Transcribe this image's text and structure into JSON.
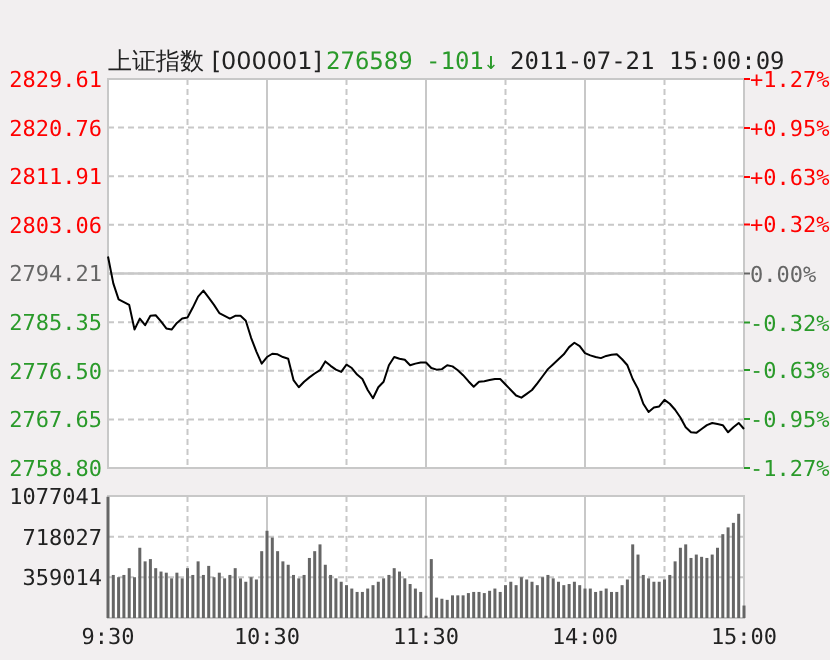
{
  "chart_data": [
    {
      "type": "line",
      "title": "上证指数 [000001]",
      "annotations": [
        "276589",
        "-101↓",
        "2011-07-21 15:00:09"
      ],
      "categories": [
        null,
        null,
        null,
        null,
        null,
        null,
        null,
        null,
        null,
        null,
        null,
        null,
        null,
        null,
        null,
        null,
        null,
        null,
        null,
        null,
        null,
        null,
        null,
        null,
        null,
        null,
        null,
        null,
        null,
        null,
        null,
        null,
        null,
        null,
        null,
        null,
        null,
        null,
        null,
        null,
        null,
        null,
        null,
        null,
        null,
        null,
        null,
        null,
        null,
        null,
        null,
        null,
        null,
        null,
        null,
        null,
        null,
        null,
        null,
        null,
        null,
        null,
        null,
        null,
        null,
        null,
        null,
        null,
        null,
        null,
        null,
        null,
        null,
        null,
        null,
        null,
        null,
        null,
        null,
        null,
        null,
        null,
        null,
        null,
        null,
        null,
        null,
        null,
        null,
        null,
        null,
        null,
        null,
        null,
        null,
        null,
        null,
        null,
        null,
        null,
        null,
        null,
        null,
        null,
        null,
        null,
        null,
        null,
        null,
        null,
        null,
        null,
        null,
        null,
        null,
        null,
        null,
        null,
        null,
        null,
        null
      ],
      "ylim": [
        2758.8,
        2829.61
      ],
      "yticks": [
        {
          "value": 2829.61,
          "label": "2829.61"
        },
        {
          "value": 2820.76,
          "label": "2820.76"
        },
        {
          "value": 2811.91,
          "label": "2811.91"
        },
        {
          "value": 2803.06,
          "label": "2803.06"
        },
        {
          "value": 2794.21,
          "label": "2794.21"
        },
        {
          "value": 2785.35,
          "label": "2785.35"
        },
        {
          "value": 2776.5,
          "label": "2776.50"
        },
        {
          "value": 2767.65,
          "label": "2767.65"
        },
        {
          "value": 2758.8,
          "label": "2758.80"
        }
      ],
      "y2lim": [
        -1.27,
        1.27
      ],
      "y2ticks": [
        {
          "value": 1.27,
          "label": "+1.27%"
        },
        {
          "value": 0.95,
          "label": "+0.95%"
        },
        {
          "value": 0.63,
          "label": "+0.63%"
        },
        {
          "value": 0.32,
          "label": "+0.32%"
        },
        {
          "value": 0,
          "label": "0.00%"
        },
        {
          "value": -0.32,
          "label": "-0.32%"
        },
        {
          "value": -0.63,
          "label": "-0.63%"
        },
        {
          "value": -0.95,
          "label": "-0.95%"
        },
        {
          "value": -1.27,
          "label": "-1.27%"
        }
      ],
      "ref_lines": [
        {
          "axis": "y",
          "value": 2794.21
        }
      ],
      "grid": true,
      "tick_labels": "y",
      "series": [
        {
          "color": "#000000",
          "values": [
            2797.3,
            2792.4,
            2789.5,
            2789.0,
            2788.5,
            2784.0,
            2786.0,
            2784.8,
            2786.5,
            2786.6,
            2785.5,
            2784.2,
            2784.0,
            2785.2,
            2786.0,
            2786.2,
            2788.0,
            2790.0,
            2791.1,
            2789.8,
            2788.5,
            2787.0,
            2786.5,
            2786.0,
            2786.5,
            2786.5,
            2785.6,
            2782.5,
            2780.0,
            2777.8,
            2779.0,
            2779.6,
            2779.5,
            2779.0,
            2778.7,
            2774.8,
            2773.5,
            2774.5,
            2775.3,
            2776.0,
            2776.6,
            2778.2,
            2777.4,
            2776.7,
            2776.3,
            2777.6,
            2777.0,
            2775.8,
            2775.0,
            2773.0,
            2771.5,
            2773.5,
            2774.5,
            2777.5,
            2779.0,
            2778.7,
            2778.5,
            2777.5,
            2777.8,
            2778.0,
            2778.0,
            2777.0,
            2776.7,
            2776.8,
            2777.5,
            2777.3,
            2776.6,
            2775.7,
            2774.6,
            2773.6,
            2774.5,
            2774.6,
            2774.8,
            2775.0,
            2775.0,
            2774.0,
            2773.0,
            2772.0,
            2771.6,
            2772.3,
            2773.0,
            2774.2,
            2775.5,
            2776.8,
            2777.7,
            2778.6,
            2779.5,
            2780.8,
            2781.6,
            2781.0,
            2779.7,
            2779.3,
            2779.0,
            2778.8,
            2779.2,
            2779.4,
            2779.5,
            2778.6,
            2777.5,
            2775.0,
            2773.2,
            2770.5,
            2769.0,
            2769.8,
            2770.0,
            2771.2,
            2770.5,
            2769.4,
            2768.0,
            2766.2,
            2765.3,
            2765.2,
            2765.9,
            2766.6,
            2767.0,
            2766.8,
            2766.6,
            2765.3,
            2766.2,
            2767.0,
            2765.9
          ]
        }
      ]
    },
    {
      "type": "bar",
      "color": "#666666",
      "categories": [
        "9:30",
        null,
        null,
        null,
        null,
        null,
        null,
        null,
        null,
        null,
        null,
        null,
        null,
        null,
        null,
        null,
        null,
        null,
        null,
        null,
        null,
        null,
        null,
        null,
        null,
        null,
        null,
        null,
        null,
        null,
        "10:30",
        null,
        null,
        null,
        null,
        null,
        null,
        null,
        null,
        null,
        null,
        null,
        null,
        null,
        null,
        null,
        null,
        null,
        null,
        null,
        null,
        null,
        null,
        null,
        null,
        null,
        null,
        null,
        null,
        null,
        "11:30",
        null,
        null,
        null,
        null,
        null,
        null,
        null,
        null,
        null,
        null,
        null,
        null,
        null,
        null,
        null,
        null,
        null,
        null,
        null,
        null,
        null,
        null,
        null,
        null,
        null,
        null,
        null,
        null,
        null,
        "14:00",
        null,
        null,
        null,
        null,
        null,
        null,
        null,
        null,
        null,
        null,
        null,
        null,
        null,
        null,
        null,
        null,
        null,
        null,
        null,
        null,
        null,
        null,
        null,
        null,
        null,
        null,
        null,
        null,
        null,
        "15:00"
      ],
      "ylim": [
        0,
        1077041
      ],
      "yticks": [
        359014,
        718027,
        1077041
      ],
      "grid": true,
      "values": [
        1070000,
        380000,
        360000,
        380000,
        440000,
        360000,
        620000,
        500000,
        520000,
        440000,
        410000,
        400000,
        350000,
        400000,
        350000,
        440000,
        380000,
        500000,
        380000,
        460000,
        360000,
        400000,
        350000,
        380000,
        440000,
        350000,
        320000,
        360000,
        340000,
        590000,
        770000,
        710000,
        590000,
        500000,
        470000,
        380000,
        350000,
        380000,
        530000,
        590000,
        650000,
        470000,
        380000,
        350000,
        320000,
        290000,
        260000,
        230000,
        230000,
        260000,
        290000,
        320000,
        350000,
        380000,
        440000,
        410000,
        350000,
        300000,
        260000,
        230000,
        20000,
        520000,
        180000,
        170000,
        160000,
        200000,
        200000,
        200000,
        220000,
        230000,
        230000,
        220000,
        240000,
        260000,
        230000,
        290000,
        320000,
        290000,
        360000,
        340000,
        320000,
        290000,
        360000,
        380000,
        350000,
        320000,
        290000,
        300000,
        320000,
        290000,
        260000,
        260000,
        230000,
        240000,
        260000,
        230000,
        230000,
        290000,
        340000,
        650000,
        560000,
        380000,
        350000,
        320000,
        320000,
        340000,
        380000,
        500000,
        620000,
        650000,
        530000,
        560000,
        540000,
        530000,
        560000,
        620000,
        740000,
        800000,
        840000,
        920000,
        110000
      ]
    }
  ]
}
